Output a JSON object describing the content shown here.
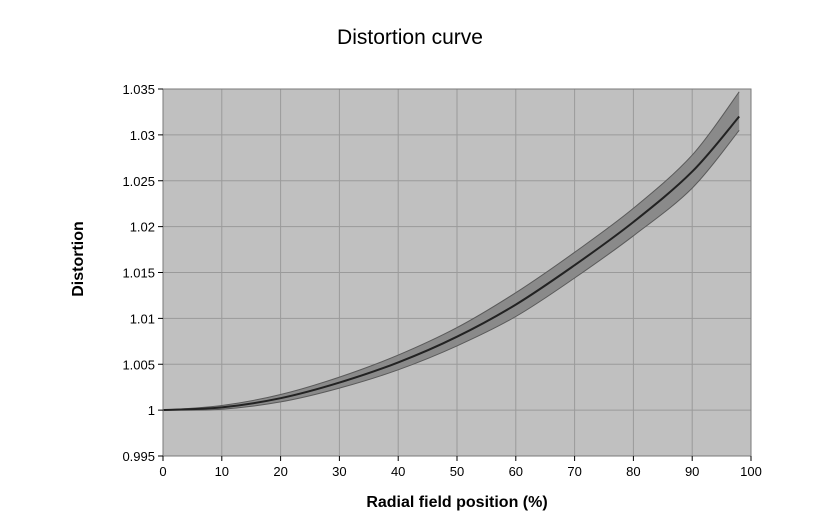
{
  "chart_data": {
    "type": "line",
    "title": "Distortion curve",
    "xlabel": "Radial field position (%)",
    "ylabel": "Distortion",
    "xlim": [
      0,
      100
    ],
    "ylim": [
      0.995,
      1.035
    ],
    "xticks": [
      "0",
      "10",
      "20",
      "30",
      "40",
      "50",
      "60",
      "70",
      "80",
      "90",
      "100"
    ],
    "yticks": [
      "0.995",
      "1",
      "1.005",
      "1.01",
      "1.015",
      "1.02",
      "1.025",
      "1.03",
      "1.035"
    ],
    "grid": true,
    "legend": "none",
    "x": [
      0,
      10,
      20,
      30,
      40,
      50,
      60,
      70,
      80,
      90,
      98
    ],
    "series": [
      {
        "role": "mean",
        "values": [
          1.0,
          1.0003,
          1.0013,
          1.003,
          1.0052,
          1.008,
          1.0115,
          1.0158,
          1.0205,
          1.026,
          1.032
        ]
      },
      {
        "role": "upper",
        "values": [
          1.0,
          1.0005,
          1.0017,
          1.0036,
          1.006,
          1.009,
          1.0128,
          1.0172,
          1.022,
          1.0278,
          1.0347
        ]
      },
      {
        "role": "lower",
        "values": [
          1.0,
          1.0001,
          1.0009,
          1.0024,
          1.0044,
          1.007,
          1.0102,
          1.0144,
          1.019,
          1.0242,
          1.0305
        ]
      }
    ],
    "colors": {
      "plot_background": "#c0c0c0",
      "band": "#8a8a8a",
      "line": "#222222",
      "grid": "#9a9a9a"
    }
  }
}
